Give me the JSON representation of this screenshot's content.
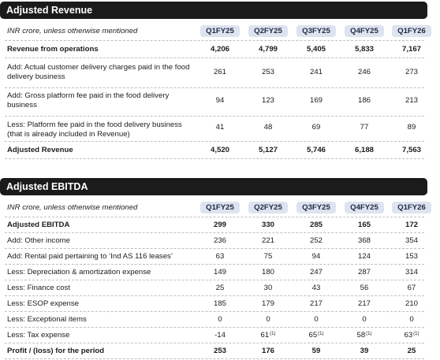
{
  "columns": [
    "Q1FY25",
    "Q2FY25",
    "Q3FY25",
    "Q4FY25",
    "Q1FY26"
  ],
  "revenue": {
    "title": "Adjusted Revenue",
    "note": "INR crore, unless otherwise mentioned",
    "rows": [
      {
        "label": "Revenue from operations",
        "values": [
          "4,206",
          "4,799",
          "5,405",
          "5,833",
          "7,167"
        ]
      },
      {
        "label": "Add: Actual customer delivery charges paid in the food delivery business",
        "values": [
          "261",
          "253",
          "241",
          "246",
          "273"
        ]
      },
      {
        "label": "Add: Gross platform fee paid in the food delivery business",
        "values": [
          "94",
          "123",
          "169",
          "186",
          "213"
        ]
      },
      {
        "label": "Less: Platform fee paid in the food delivery business (that is already included in Revenue)",
        "values": [
          "41",
          "48",
          "69",
          "77",
          "89"
        ]
      },
      {
        "label": "Adjusted Revenue",
        "values": [
          "4,520",
          "5,127",
          "5,746",
          "6,188",
          "7,563"
        ]
      }
    ]
  },
  "ebitda": {
    "title": "Adjusted EBITDA",
    "note": "INR crore, unless otherwise mentioned",
    "footnote_mark": "(1)",
    "rows": [
      {
        "label": "Adjusted EBITDA",
        "values": [
          "299",
          "330",
          "285",
          "165",
          "172"
        ]
      },
      {
        "label": "Add: Other income",
        "values": [
          "236",
          "221",
          "252",
          "368",
          "354"
        ]
      },
      {
        "label": "Add: Rental paid pertaining to ‘Ind AS 116 leases’",
        "values": [
          "63",
          "75",
          "94",
          "124",
          "153"
        ]
      },
      {
        "label": "Less: Depreciation & amortization expense",
        "values": [
          "149",
          "180",
          "247",
          "287",
          "314"
        ]
      },
      {
        "label": "Less: Finance cost",
        "values": [
          "25",
          "30",
          "43",
          "56",
          "67"
        ]
      },
      {
        "label": "Less: ESOP expense",
        "values": [
          "185",
          "179",
          "217",
          "217",
          "210"
        ]
      },
      {
        "label": "Less: Exceptional items",
        "values": [
          "0",
          "0",
          "0",
          "0",
          "0"
        ]
      },
      {
        "label": "Less: Tax expense",
        "values": [
          "-14",
          "61",
          "65",
          "58",
          "63"
        ]
      },
      {
        "label": "Profit / (loss) for the period",
        "values": [
          "253",
          "176",
          "59",
          "39",
          "25"
        ]
      }
    ]
  }
}
